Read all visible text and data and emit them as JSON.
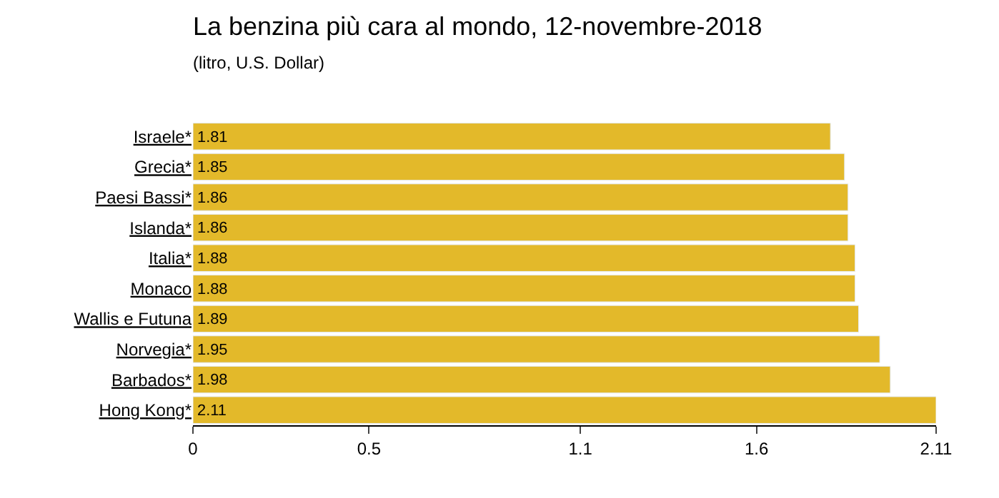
{
  "chart_data": {
    "type": "bar",
    "orientation": "horizontal",
    "title": "La benzina più cara al mondo, 12-novembre-2018",
    "subtitle": "(litro, U.S. Dollar)",
    "categories": [
      "Israele*",
      "Grecia*",
      "Paesi Bassi*",
      "Islanda*",
      "Italia*",
      "Monaco",
      "Wallis e Futuna",
      "Norvegia*",
      "Barbados*",
      "Hong Kong*"
    ],
    "values": [
      1.81,
      1.85,
      1.86,
      1.86,
      1.88,
      1.88,
      1.89,
      1.95,
      1.98,
      2.11
    ],
    "color": "#e3b92a",
    "data_labels": true,
    "xlim": [
      0,
      2.11
    ],
    "xticks": [
      0,
      0.5,
      1.1,
      1.6,
      2.11
    ]
  }
}
